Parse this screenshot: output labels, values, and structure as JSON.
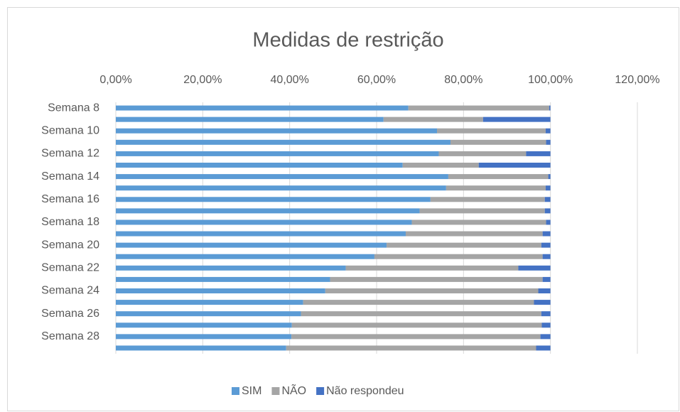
{
  "chart_data": {
    "type": "stacked_bar_horizontal",
    "title": "Medidas de restrição",
    "categories": [
      "Semana 8",
      null,
      "Semana 10",
      null,
      "Semana 12",
      null,
      "Semana 14",
      null,
      "Semana 16",
      null,
      "Semana 18",
      null,
      "Semana 20",
      null,
      "Semana 22",
      null,
      "Semana 24",
      null,
      "Semana 26",
      null,
      "Semana 28",
      null
    ],
    "series": [
      {
        "name": "SIM",
        "color": "#5b9bd5",
        "values": [
          67.3,
          61.6,
          73.9,
          77.0,
          74.3,
          66.0,
          76.5,
          76.0,
          72.4,
          69.9,
          68.1,
          66.7,
          62.3,
          59.5,
          52.9,
          49.3,
          48.2,
          43.1,
          42.6,
          40.5,
          40.4,
          39.2
        ]
      },
      {
        "name": "NÃO",
        "color": "#a5a5a5",
        "values": [
          32.4,
          22.9,
          25.0,
          22.0,
          20.1,
          17.5,
          23.0,
          22.9,
          26.3,
          28.8,
          30.9,
          31.5,
          35.6,
          38.7,
          39.7,
          48.9,
          49.0,
          53.1,
          55.3,
          57.5,
          57.3,
          57.5
        ]
      },
      {
        "name": "Não respondeu",
        "color": "#4472c4",
        "values": [
          0.3,
          15.5,
          1.1,
          1.0,
          5.6,
          16.5,
          0.5,
          1.1,
          1.3,
          1.3,
          1.0,
          1.8,
          2.1,
          1.8,
          7.4,
          1.8,
          2.8,
          3.8,
          2.1,
          2.0,
          2.3,
          3.3
        ]
      }
    ],
    "xlim": [
      0,
      120
    ],
    "xticks": [
      {
        "value": 0,
        "label": "0,00%"
      },
      {
        "value": 20,
        "label": "20,00%"
      },
      {
        "value": 40,
        "label": "40,00%"
      },
      {
        "value": 60,
        "label": "60,00%"
      },
      {
        "value": 80,
        "label": "80,00%"
      },
      {
        "value": 100,
        "label": "100,00%"
      },
      {
        "value": 120,
        "label": "120,00%"
      }
    ],
    "grid": true,
    "legend": "bottom"
  }
}
